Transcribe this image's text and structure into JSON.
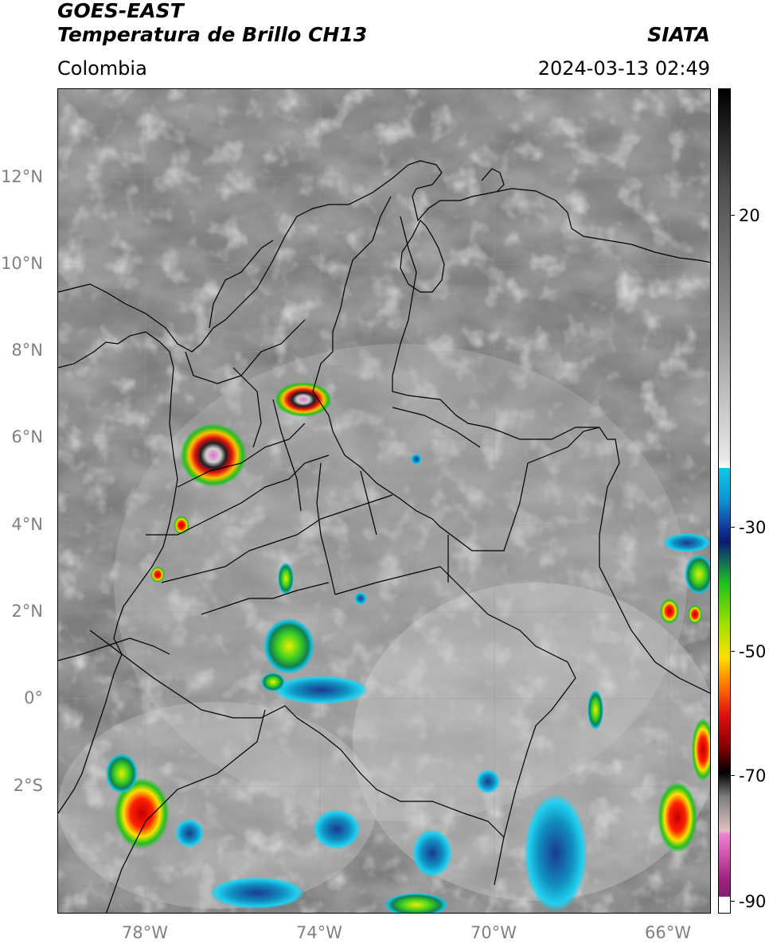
{
  "header": {
    "satellite": "GOES-EAST",
    "product": "Temperatura de Brillo CH13",
    "organization": "SIATA",
    "region": "Colombia",
    "timestamp": "2024-03-13 02:49"
  },
  "map": {
    "lat_labels": [
      "12°N",
      "10°N",
      "8°N",
      "6°N",
      "4°N",
      "2°N",
      "0°",
      "2°S"
    ],
    "lon_labels": [
      "78°W",
      "74°W",
      "70°W",
      "66°W"
    ],
    "lon_range": [
      -80,
      -65
    ],
    "lat_range": [
      -5,
      14
    ]
  },
  "colorbar": {
    "labels": [
      "20",
      "-30",
      "-50",
      "-70",
      "-90"
    ],
    "values": [
      20,
      -30,
      -50,
      -70,
      -90
    ],
    "range": [
      -92,
      32
    ]
  },
  "colors": {
    "background": "#808080",
    "cold_pink": "#e060c0",
    "cold_red": "#e01010",
    "yellow": "#ffe000",
    "green": "#20c020",
    "blue": "#1040a0",
    "cyan": "#10c0e0"
  }
}
